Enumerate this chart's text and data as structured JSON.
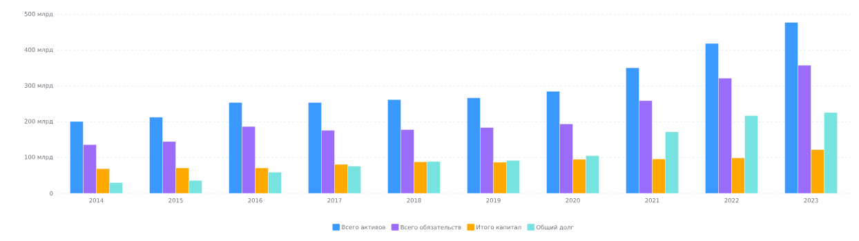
{
  "chart_data": {
    "type": "bar",
    "categories": [
      "2014",
      "2015",
      "2016",
      "2017",
      "2018",
      "2019",
      "2020",
      "2021",
      "2022",
      "2023"
    ],
    "series": [
      {
        "name": "Всего активов",
        "color": "#3a99ff",
        "values": [
          201,
          213,
          254,
          254,
          262,
          267,
          285,
          351,
          419,
          478
        ]
      },
      {
        "name": "Всего обязательств",
        "color": "#9b6cf9",
        "values": [
          136,
          145,
          187,
          176,
          178,
          184,
          194,
          259,
          322,
          358
        ]
      },
      {
        "name": "Итого капитал",
        "color": "#ffa800",
        "values": [
          69,
          71,
          71,
          81,
          88,
          87,
          95,
          96,
          99,
          122
        ]
      },
      {
        "name": "Общий долг",
        "color": "#76e3e0",
        "values": [
          30,
          36,
          59,
          76,
          89,
          92,
          105,
          172,
          217,
          226
        ]
      }
    ],
    "ylim": [
      0,
      500
    ],
    "yticks": [
      0,
      {
        "value": 100,
        "label": "100 млрд"
      },
      {
        "value": 200,
        "label": "200 млрд"
      },
      {
        "value": 300,
        "label": "300 млрд"
      },
      {
        "value": 400,
        "label": "400 млрд"
      },
      {
        "value": 500,
        "label": "500 млрд"
      }
    ],
    "grid": "y",
    "legend": "bottom"
  }
}
